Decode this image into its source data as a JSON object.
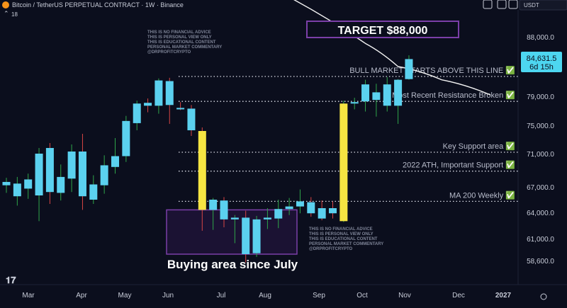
{
  "header": {
    "title": "Bitcoin / TetherUS PERPETUAL CONTRACT · 1W · Binance",
    "indicator_count": "18",
    "currency": "USDT"
  },
  "disclaimer": [
    "THIS IS NO FINANCIAL ADVICE",
    "THIS IS PERSONAL VIEW ONLY",
    "THIS IS EDUCATIONAL CONTENT",
    "PERSONAL MARKET COMMENTARY",
    "@DRPROFITCRYPTO"
  ],
  "target": {
    "label": "TARGET $88,000",
    "color": "#7b3fa8"
  },
  "buying_area": {
    "label": "Buying area since July",
    "color": "#7b3fa8"
  },
  "price_tag": {
    "value": "84,631.5",
    "countdown": "6d 15h",
    "color": "#4dd6f0"
  },
  "colors": {
    "bull": "#5bd1ef",
    "bear": "#5bd1ef",
    "highlight": "#f6e542",
    "wick_up": "#2fa64a",
    "wick_down": "#d94545",
    "ma": "#f2f2f2"
  },
  "chart_data": {
    "type": "candlestick",
    "y_ticks": [
      88000,
      79000,
      75000,
      71000,
      67000,
      64000,
      61000,
      58600
    ],
    "y_tick_labels": [
      "88,000.0",
      "79,000.0",
      "75,000.0",
      "71,000.0",
      "67,000.0",
      "64,000.0",
      "61,000.0",
      "58,600.0"
    ],
    "x_labels": [
      "Mar",
      "Apr",
      "May",
      "Jun",
      "Jul",
      "Aug",
      "Sep",
      "Oct",
      "Nov",
      "Dec",
      "2027"
    ],
    "levels": [
      {
        "label": "BULL MARKET STARTS ABOVE THIS LINE ✅",
        "value": 82000
      },
      {
        "label": "Most Recent Resistance Broken ✅",
        "value": 78300
      },
      {
        "label": "Key Support area ✅",
        "value": 71200
      },
      {
        "label": "2022 ATH, Important Support ✅",
        "value": 68900
      },
      {
        "label": "MA 200 Weekly ✅",
        "value": 65300
      }
    ],
    "buying_range": [
      59300,
      64300
    ],
    "ma_200": [
      [
        26,
        94000
      ],
      [
        33,
        87000
      ],
      [
        36,
        83500
      ],
      [
        40,
        81500
      ],
      [
        44.5,
        79200
      ]
    ],
    "candles": [
      {
        "w": 0,
        "o": 67200,
        "h": 68100,
        "l": 66300,
        "c": 67600
      },
      {
        "w": 1,
        "o": 65900,
        "h": 68200,
        "l": 64800,
        "c": 67400
      },
      {
        "w": 2,
        "o": 66800,
        "h": 68600,
        "l": 65600,
        "c": 67900
      },
      {
        "w": 3,
        "o": 66000,
        "h": 71800,
        "l": 63000,
        "c": 71000
      },
      {
        "w": 4,
        "o": 71800,
        "h": 72500,
        "l": 65000,
        "c": 66400
      },
      {
        "w": 5,
        "o": 66300,
        "h": 69700,
        "l": 65400,
        "c": 68200
      },
      {
        "w": 6,
        "o": 68000,
        "h": 72300,
        "l": 66400,
        "c": 71300
      },
      {
        "w": 7,
        "o": 71300,
        "h": 73800,
        "l": 64300,
        "c": 65900
      },
      {
        "w": 8,
        "o": 65500,
        "h": 68400,
        "l": 65000,
        "c": 67300
      },
      {
        "w": 9,
        "o": 67200,
        "h": 70800,
        "l": 66200,
        "c": 69600
      },
      {
        "w": 10,
        "o": 69400,
        "h": 73200,
        "l": 68600,
        "c": 70700
      },
      {
        "w": 11,
        "o": 70700,
        "h": 76300,
        "l": 70000,
        "c": 75600
      },
      {
        "w": 12,
        "o": 75300,
        "h": 78400,
        "l": 74300,
        "c": 78000
      },
      {
        "w": 13,
        "o": 78100,
        "h": 78700,
        "l": 76800,
        "c": 77700
      },
      {
        "w": 14,
        "o": 77700,
        "h": 81700,
        "l": 76600,
        "c": 81400
      },
      {
        "w": 15,
        "o": 81300,
        "h": 81800,
        "l": 75200,
        "c": 77800
      },
      {
        "w": 16,
        "o": 77400,
        "h": 78200,
        "l": 77100,
        "c": 77200
      },
      {
        "w": 17,
        "o": 77300,
        "h": 77800,
        "l": 73500,
        "c": 74300
      },
      {
        "w": 18,
        "o": 74200,
        "h": 74700,
        "l": 61900,
        "c": 64300,
        "highlight": true
      },
      {
        "w": 19,
        "o": 64300,
        "h": 65700,
        "l": 62000,
        "c": 65500
      },
      {
        "w": 20,
        "o": 65400,
        "h": 65800,
        "l": 62300,
        "c": 63200
      },
      {
        "w": 21,
        "o": 63200,
        "h": 63700,
        "l": 60500,
        "c": 63400
      },
      {
        "w": 22,
        "o": 63400,
        "h": 64200,
        "l": 58400,
        "c": 59300
      },
      {
        "w": 23,
        "o": 59400,
        "h": 63600,
        "l": 59000,
        "c": 63200
      },
      {
        "w": 24,
        "o": 63200,
        "h": 64500,
        "l": 62100,
        "c": 63400
      },
      {
        "w": 25,
        "o": 63300,
        "h": 65500,
        "l": 62200,
        "c": 64400
      },
      {
        "w": 26,
        "o": 64400,
        "h": 65700,
        "l": 63700,
        "c": 64700
      },
      {
        "w": 27,
        "o": 64700,
        "h": 66700,
        "l": 63900,
        "c": 65300
      },
      {
        "w": 28,
        "o": 65200,
        "h": 65800,
        "l": 63500,
        "c": 63900
      },
      {
        "w": 29,
        "o": 64500,
        "h": 65400,
        "l": 63100,
        "c": 63300
      },
      {
        "w": 30,
        "o": 64500,
        "h": 65300,
        "l": 63300,
        "c": 63900
      },
      {
        "w": 31,
        "o": 63000,
        "h": 78400,
        "l": 62900,
        "c": 78000,
        "highlight": true
      },
      {
        "w": 32,
        "o": 78000,
        "h": 78800,
        "l": 77200,
        "c": 78200
      },
      {
        "w": 33,
        "o": 78300,
        "h": 81500,
        "l": 76900,
        "c": 80800
      },
      {
        "w": 34,
        "o": 78500,
        "h": 80900,
        "l": 76200,
        "c": 79600
      },
      {
        "w": 35,
        "o": 77700,
        "h": 81900,
        "l": 76900,
        "c": 80800
      },
      {
        "w": 36,
        "o": 77700,
        "h": 81600,
        "l": 75200,
        "c": 81500
      },
      {
        "w": 37,
        "o": 81600,
        "h": 85200,
        "l": 81500,
        "c": 84631.5
      }
    ]
  }
}
